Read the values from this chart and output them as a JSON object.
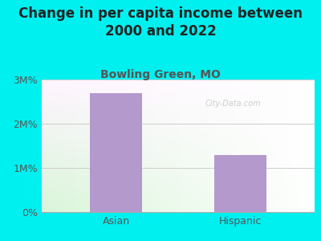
{
  "categories": [
    "Asian",
    "Hispanic"
  ],
  "values": [
    2700000,
    1300000
  ],
  "bar_color": "#b399cc",
  "title": "Change in per capita income between\n2000 and 2022",
  "subtitle": "Bowling Green, MO",
  "subtitle_color": "#555555",
  "title_color": "#222222",
  "background_color": "#00f0f0",
  "ylim": [
    0,
    3000000
  ],
  "yticks": [
    0,
    1000000,
    2000000,
    3000000
  ],
  "ytick_labels": [
    "0%",
    "1M%",
    "2M%",
    "3M%"
  ],
  "watermark": "City-Data.com",
  "title_fontsize": 12,
  "subtitle_fontsize": 10,
  "tick_fontsize": 9
}
